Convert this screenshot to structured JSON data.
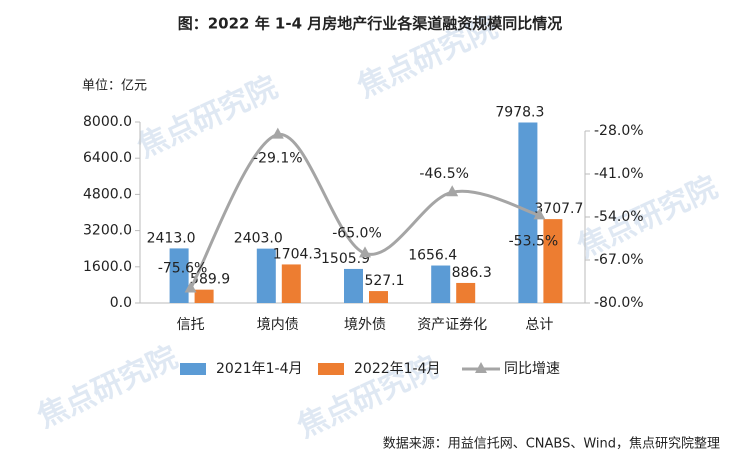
{
  "chart_data": {
    "type": "bar-line",
    "title": "图：2022 年 1-4 月房地产行业各渠道融资规模同比情况",
    "y_label": "单位：亿元",
    "source": "数据来源：用益信托网、CNABS、Wind，焦点研究院整理",
    "watermark": "焦点研究院",
    "categories": [
      "信托",
      "境内债",
      "境外债",
      "资产证券化",
      "总计"
    ],
    "series": [
      {
        "name": "2021年1-4月",
        "color": "#5b9bd5",
        "kind": "bar",
        "values": [
          2413.0,
          2403.0,
          1505.9,
          1656.4,
          7978.3
        ],
        "value_labels": [
          "2413.0",
          "2403.0",
          "1505.9",
          "1656.4",
          "7978.3"
        ]
      },
      {
        "name": "2022年1-4月",
        "color": "#ed7d31",
        "kind": "bar",
        "values": [
          589.9,
          1704.3,
          527.1,
          886.3,
          3707.7
        ],
        "value_labels": [
          "589.9",
          "1704.3",
          "527.1",
          "886.3",
          "3707.7"
        ]
      },
      {
        "name": "同比增速",
        "color": "#a5a5a5",
        "kind": "line",
        "axis": "y2",
        "values": [
          -75.6,
          -29.1,
          -65.0,
          -46.5,
          -53.5
        ],
        "value_labels": [
          "-75.6%",
          "-29.1%",
          "-65.0%",
          "-46.5%",
          "-53.5%"
        ]
      }
    ],
    "ylim": [
      0,
      8000
    ],
    "yticks": [
      {
        "value": 0,
        "label": "0.0"
      },
      {
        "value": 1600,
        "label": "1600.0"
      },
      {
        "value": 3200,
        "label": "3200.0"
      },
      {
        "value": 4800,
        "label": "4800.0"
      },
      {
        "value": 6400,
        "label": "6400.0"
      },
      {
        "value": 8000,
        "label": "8000.0"
      }
    ],
    "y2lim": [
      -80,
      -28
    ],
    "y2ticks": [
      {
        "value": -80,
        "label": "-80.0%"
      },
      {
        "value": -67,
        "label": "-67.0%"
      },
      {
        "value": -54,
        "label": "-54.0%"
      },
      {
        "value": -41,
        "label": "-41.0%"
      },
      {
        "value": -28,
        "label": "-28.0%"
      }
    ],
    "legend": "bottom"
  }
}
